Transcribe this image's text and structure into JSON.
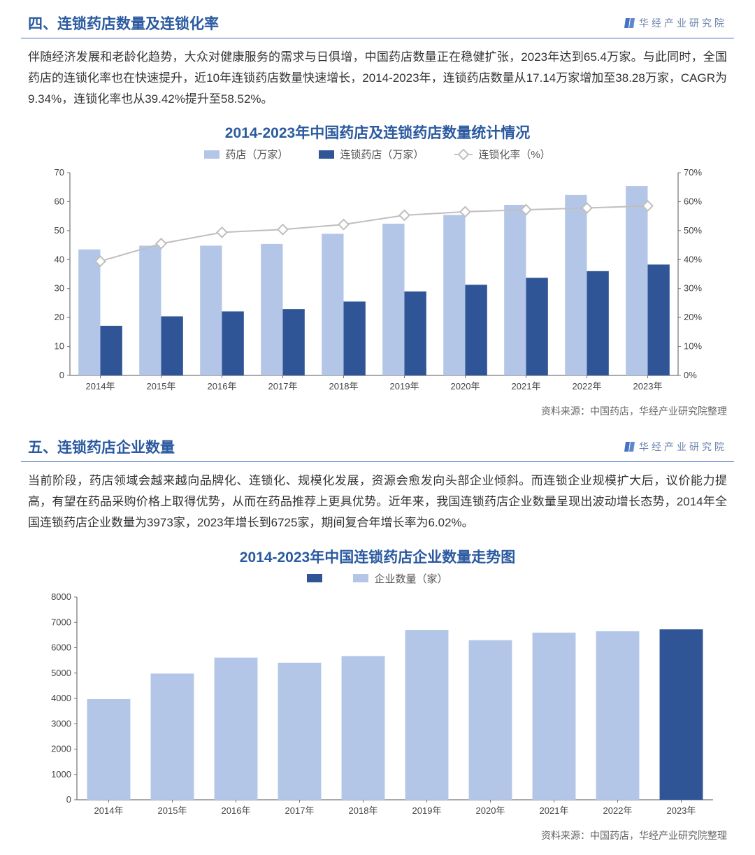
{
  "section1": {
    "heading": "四、连锁药店数量及连锁化率",
    "brand": "华经产业研究院",
    "paragraph": "伴随经济发展和老龄化趋势，大众对健康服务的需求与日俱增，中国药店数量正在稳健扩张，2023年达到65.4万家。与此同时，全国药店的连锁化率也在快速提升，近10年连锁药店数量快速增长，2014-2023年，连锁药店数量从17.14万家增加至38.28万家，CAGR为9.34%，连锁化率也从39.42%提升至58.52%。",
    "chart": {
      "title": "2014-2023年中国药店及连锁药店数量统计情况",
      "type": "bar+line",
      "legend": {
        "bar_light": "药店（万家）",
        "bar_dark": "连锁药店（万家）",
        "line": "连锁化率（%）"
      },
      "categories": [
        "2014年",
        "2015年",
        "2016年",
        "2017年",
        "2018年",
        "2019年",
        "2020年",
        "2021年",
        "2022年",
        "2023年"
      ],
      "pharmacies": [
        43.5,
        44.8,
        44.8,
        45.4,
        48.9,
        52.4,
        55.4,
        58.9,
        62.3,
        65.4
      ],
      "chain_pharmacies": [
        17.14,
        20.4,
        22.1,
        22.9,
        25.5,
        29.0,
        31.3,
        33.7,
        36.0,
        38.28
      ],
      "chain_rate_pct": [
        39.42,
        45.5,
        49.4,
        50.4,
        52.1,
        55.3,
        56.5,
        57.2,
        57.8,
        58.52
      ],
      "y_left": {
        "min": 0,
        "max": 70,
        "step": 10
      },
      "y_right_pct": {
        "min": 0,
        "max": 70,
        "step": 10
      },
      "colors": {
        "bar_light": "#b4c6e7",
        "bar_dark": "#2f5597",
        "line": "#bfbfbf",
        "marker_border": "#bfbfbf",
        "marker_fill": "#ffffff",
        "axis": "#555555",
        "tick_text": "#444444"
      },
      "bar_group_width": 0.72,
      "label_fontsize": 13,
      "source": "资料来源：中国药店，华经产业研究院整理"
    }
  },
  "section2": {
    "heading": "五、连锁药店企业数量",
    "brand": "华经产业研究院",
    "paragraph": "当前阶段，药店领域会越来越向品牌化、连锁化、规模化发展，资源会愈发向头部企业倾斜。而连锁企业规模扩大后，议价能力提高，有望在药品采购价格上取得优势，从而在药品推荐上更具优势。近年来，我国连锁药店企业数量呈现出波动增长态势，2014年全国连锁药店企业数量为3973家，2023年增长到6725家，期间复合年增长率为6.02%。",
    "chart": {
      "title": "2014-2023年中国连锁药店企业数量走势图",
      "type": "bar",
      "legend_label": "企业数量（家）",
      "categories": [
        "2014年",
        "2015年",
        "2016年",
        "2017年",
        "2018年",
        "2019年",
        "2020年",
        "2021年",
        "2022年",
        "2023年"
      ],
      "values": [
        3973,
        4981,
        5609,
        5409,
        5671,
        6701,
        6298,
        6596,
        6650,
        6725
      ],
      "highlight_index": 9,
      "y": {
        "min": 0,
        "max": 8000,
        "step": 1000
      },
      "colors": {
        "bar": "#b4c6e7",
        "bar_highlight": "#2f5597",
        "axis": "#555555",
        "tick_text": "#444444",
        "swatch_dark": "#2f5597",
        "swatch_light": "#b4c6e7"
      },
      "bar_width": 0.68,
      "label_fontsize": 13,
      "source": "资料来源：中国药店，华经产业研究院整理"
    }
  }
}
